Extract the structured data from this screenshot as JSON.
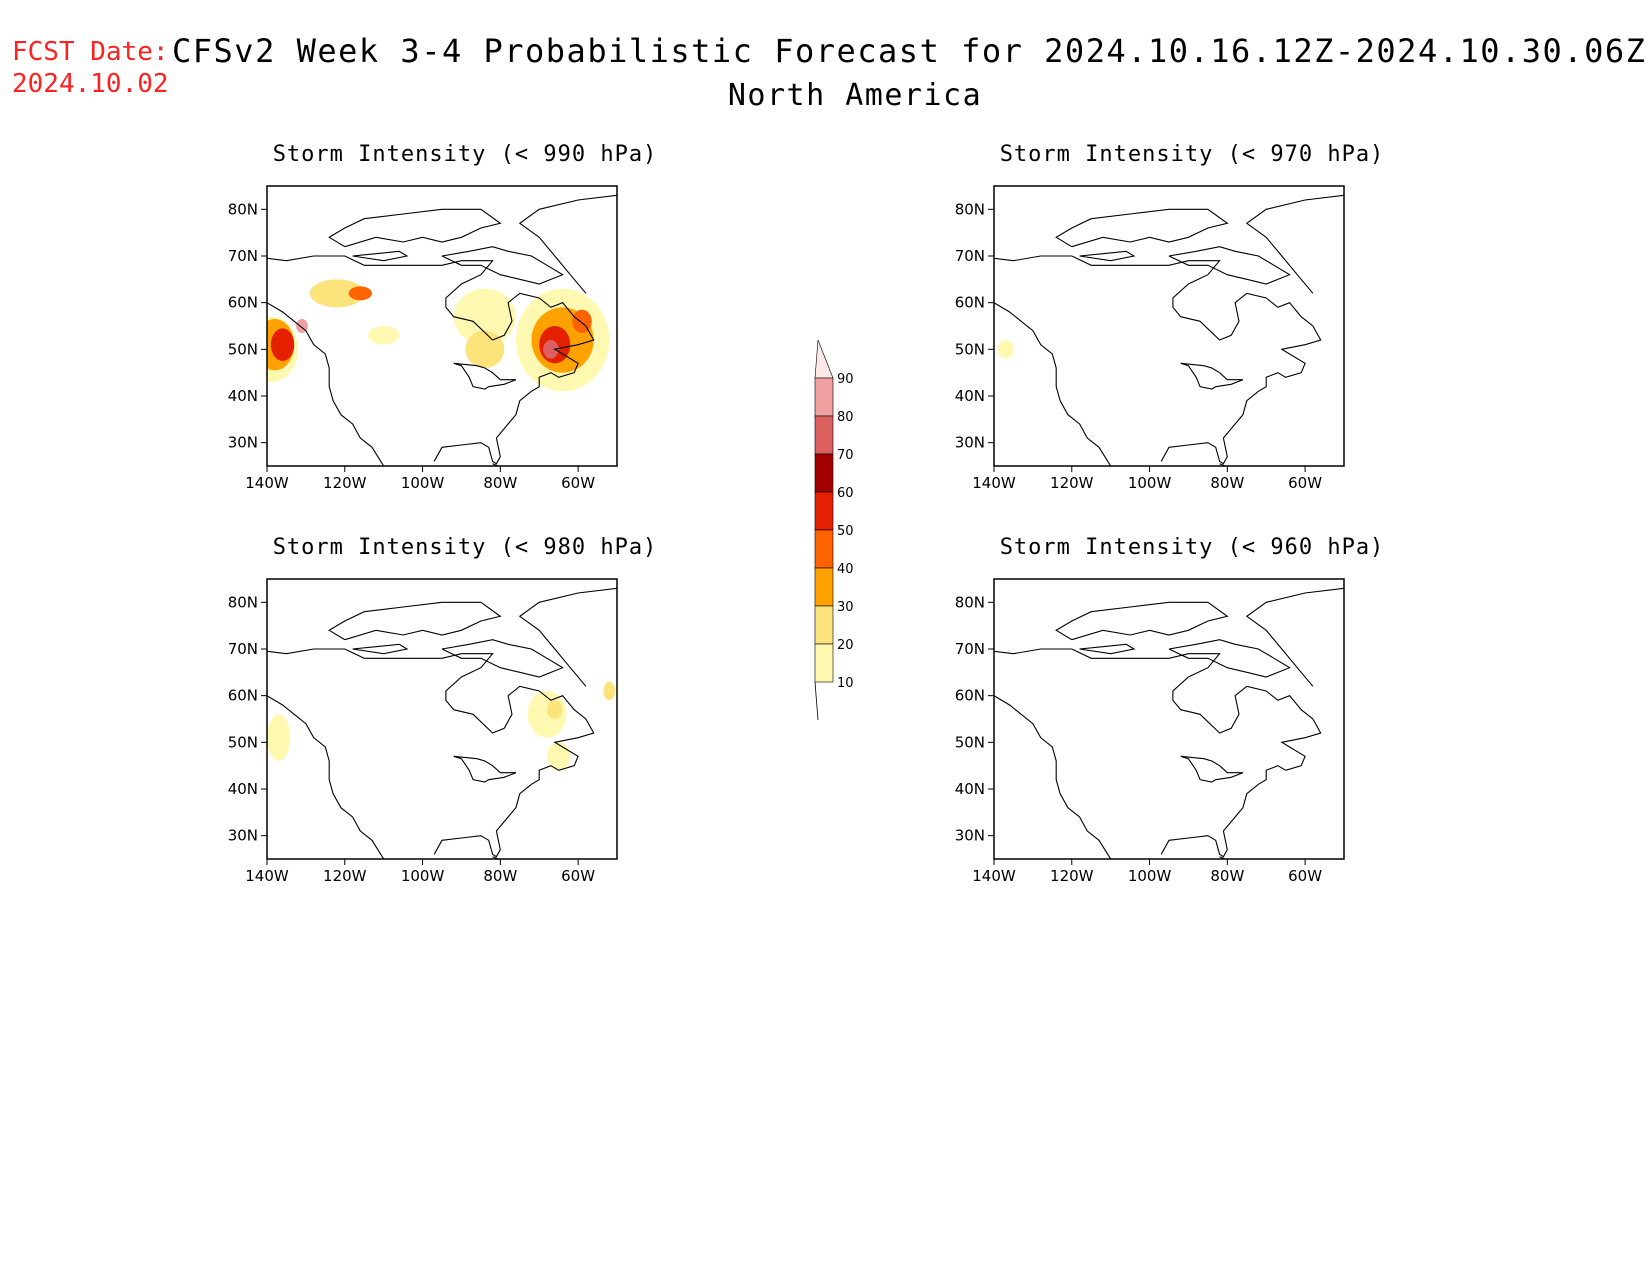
{
  "header": {
    "fcst_prefix": "FCST Date:",
    "fcst_date": "2024.10.02",
    "title": "CFSv2 Week 3-4 Probabilistic Forecast for 2024.10.16.12Z-2024.10.30.06Z",
    "subtitle": "North America"
  },
  "map": {
    "lat_ticks": [
      "80N",
      "70N",
      "60N",
      "50N",
      "40N",
      "30N"
    ],
    "lon_ticks": [
      "140W",
      "120W",
      "100W",
      "80W",
      "60W"
    ],
    "lat_values": [
      80,
      70,
      60,
      50,
      40,
      30
    ],
    "lon_values": [
      -140,
      -120,
      -100,
      -80,
      -60
    ],
    "extent": {
      "lon_min": -140,
      "lon_max": -50,
      "lat_min": 25,
      "lat_max": 85
    }
  },
  "colorbar": {
    "levels": [
      "10",
      "20",
      "30",
      "40",
      "50",
      "60",
      "70",
      "80",
      "90"
    ],
    "colors": [
      "#fff8b0",
      "#fde37c",
      "#ffa200",
      "#ff6300",
      "#e42000",
      "#a50000",
      "#dc6060",
      "#f0a0a0",
      "#fde8e8"
    ]
  },
  "panels": [
    {
      "id": "990",
      "title": "Storm Intensity (< 990 hPa)",
      "regions": [
        {
          "level": 1,
          "lon": -139,
          "lat": 50,
          "w": 14,
          "h": 14
        },
        {
          "level": 3,
          "lon": -138,
          "lat": 51,
          "w": 10,
          "h": 11
        },
        {
          "level": 5,
          "lon": -136,
          "lat": 51,
          "w": 6,
          "h": 7
        },
        {
          "level": 8,
          "lon": -131,
          "lat": 55,
          "w": 3,
          "h": 3
        },
        {
          "level": 2,
          "lon": -122,
          "lat": 62,
          "w": 14,
          "h": 6
        },
        {
          "level": 4,
          "lon": -116,
          "lat": 62,
          "w": 6,
          "h": 3
        },
        {
          "level": 1,
          "lon": -110,
          "lat": 53,
          "w": 8,
          "h": 4
        },
        {
          "level": 1,
          "lon": -84,
          "lat": 57,
          "w": 16,
          "h": 12
        },
        {
          "level": 2,
          "lon": -84,
          "lat": 50,
          "w": 10,
          "h": 8
        },
        {
          "level": 1,
          "lon": -64,
          "lat": 52,
          "w": 24,
          "h": 22
        },
        {
          "level": 3,
          "lon": -64,
          "lat": 52,
          "w": 16,
          "h": 14
        },
        {
          "level": 5,
          "lon": -66,
          "lat": 51,
          "w": 8,
          "h": 8
        },
        {
          "level": 7,
          "lon": -67,
          "lat": 50,
          "w": 4,
          "h": 4
        },
        {
          "level": 4,
          "lon": -59,
          "lat": 56,
          "w": 5,
          "h": 5
        }
      ]
    },
    {
      "id": "970",
      "title": "Storm Intensity (< 970 hPa)",
      "regions": [
        {
          "level": 1,
          "lon": -137,
          "lat": 50,
          "w": 4,
          "h": 4
        }
      ]
    },
    {
      "id": "980",
      "title": "Storm Intensity (< 980 hPa)",
      "regions": [
        {
          "level": 1,
          "lon": -137,
          "lat": 51,
          "w": 6,
          "h": 10
        },
        {
          "level": 1,
          "lon": -68,
          "lat": 56,
          "w": 10,
          "h": 10
        },
        {
          "level": 2,
          "lon": -66,
          "lat": 57,
          "w": 4,
          "h": 4
        },
        {
          "level": 1,
          "lon": -65,
          "lat": 47,
          "w": 6,
          "h": 6
        },
        {
          "level": 2,
          "lon": -52,
          "lat": 61,
          "w": 3,
          "h": 4
        }
      ]
    },
    {
      "id": "960",
      "title": "Storm Intensity (< 960 hPa)",
      "regions": []
    }
  ]
}
